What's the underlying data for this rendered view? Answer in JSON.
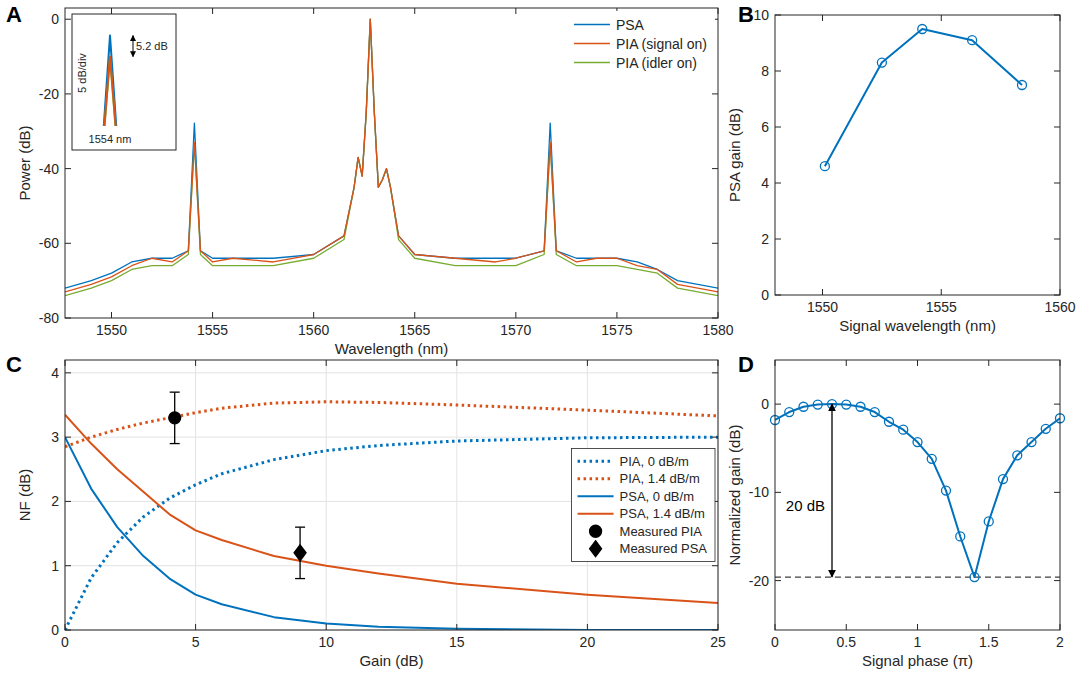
{
  "chart_data": [
    {
      "panel": "A",
      "type": "line",
      "x_label": "Wavelength (nm)",
      "y_label": "Power (dB)",
      "xlim": [
        1547.7,
        1580
      ],
      "xticks": [
        1550,
        1555,
        1560,
        1565,
        1570,
        1575,
        1580
      ],
      "ylim": [
        -80,
        3
      ],
      "yticks": [
        -80,
        -60,
        -40,
        -20,
        0
      ],
      "grid": false,
      "legend": "upper right",
      "x": [
        1547.7,
        1549,
        1550,
        1551,
        1552,
        1553,
        1553.8,
        1554.1,
        1554.4,
        1555,
        1556,
        1558,
        1560,
        1561.5,
        1562.0,
        1562.2,
        1562.4,
        1562.6,
        1562.8,
        1563.0,
        1563.2,
        1563.4,
        1563.6,
        1563.8,
        1564.2,
        1565,
        1567,
        1569,
        1570,
        1571.4,
        1571.7,
        1572.0,
        1573,
        1574,
        1575,
        1576,
        1577,
        1578,
        1580
      ],
      "series": [
        {
          "name": "PSA",
          "color": "#0072bd",
          "line_style": "solid",
          "values": [
            -72,
            -70,
            -68,
            -65,
            -64,
            -64,
            -62,
            -27.8,
            -62,
            -64,
            -64,
            -64,
            -63,
            -58,
            -45,
            -37,
            -42,
            -25,
            0,
            -25,
            -45,
            -43,
            -40,
            -45,
            -58,
            -63,
            -64,
            -64,
            -64,
            -62,
            -27.8,
            -62,
            -64,
            -64,
            -64,
            -65,
            -67,
            -70,
            -72
          ]
        },
        {
          "name": "PIA (signal on)",
          "color": "#d95319",
          "line_style": "solid",
          "values": [
            -73,
            -71,
            -69,
            -66,
            -64,
            -65,
            -62,
            -33,
            -62,
            -65,
            -64,
            -65,
            -63,
            -58,
            -45,
            -37,
            -42,
            -25,
            0,
            -25,
            -45,
            -43,
            -40,
            -45,
            -58,
            -63,
            -64,
            -65,
            -64,
            -62,
            -33,
            -62,
            -65,
            -64,
            -64,
            -66,
            -67,
            -71,
            -73
          ]
        },
        {
          "name": "PIA (idler on)",
          "color": "#77ac30",
          "line_style": "solid",
          "values": [
            -74,
            -72,
            -70,
            -67,
            -66,
            -66,
            -63,
            -33,
            -63,
            -66,
            -66,
            -66,
            -64,
            -59,
            -45,
            -37,
            -42,
            -25,
            0,
            -25,
            -45,
            -43,
            -40,
            -45,
            -59,
            -64,
            -66,
            -66,
            -66,
            -63,
            -33,
            -63,
            -66,
            -66,
            -66,
            -67,
            -68,
            -72,
            -74
          ]
        }
      ],
      "inset": {
        "xlim": [
          1553.6,
          1554.6
        ],
        "ylim": [
          -50,
          -24
        ],
        "y_label": "5 dB/div",
        "x_label": "1554 nm",
        "annotation": "5.2 dB"
      }
    },
    {
      "panel": "B",
      "type": "line",
      "marker": "circle",
      "color": "#0072bd",
      "x_label": "Signal wavelength (nm)",
      "y_label": "PSA gain (dB)",
      "xlim": [
        1548,
        1560
      ],
      "xticks": [
        1550,
        1555,
        1560
      ],
      "ylim": [
        0,
        10
      ],
      "yticks": [
        0,
        2,
        4,
        6,
        8,
        10
      ],
      "grid": false,
      "x": [
        1550.1,
        1552.5,
        1554.2,
        1556.3,
        1558.4
      ],
      "series": [
        {
          "color": "#0072bd",
          "line_style": "solid",
          "values": [
            4.6,
            8.3,
            9.5,
            9.1,
            7.5
          ]
        }
      ]
    },
    {
      "panel": "C",
      "type": "line",
      "x_label": "Gain (dB)",
      "y_label": "NF (dB)",
      "xlim": [
        0,
        25
      ],
      "xticks": [
        0,
        5,
        10,
        15,
        20,
        25
      ],
      "ylim": [
        0,
        4.2
      ],
      "yticks": [
        0,
        1,
        2,
        3,
        4
      ],
      "grid": true,
      "legend": "right",
      "series": [
        {
          "name": "PIA, 0 dB/m",
          "color": "#0072bd",
          "line_style": "dotted",
          "x": [
            0,
            1,
            2,
            3,
            4,
            5,
            6,
            8,
            10,
            12,
            15,
            20,
            25
          ],
          "values": [
            0,
            0.81,
            1.36,
            1.76,
            2.05,
            2.26,
            2.43,
            2.65,
            2.79,
            2.87,
            2.94,
            2.99,
            3.0
          ]
        },
        {
          "name": "PIA, 1.4 dB/m",
          "color": "#d95319",
          "line_style": "dotted",
          "x": [
            0,
            1,
            2,
            3,
            4,
            5,
            6,
            8,
            10,
            12,
            15,
            20,
            25
          ],
          "values": [
            2.85,
            3.0,
            3.12,
            3.22,
            3.3,
            3.38,
            3.45,
            3.53,
            3.55,
            3.54,
            3.5,
            3.42,
            3.33
          ]
        },
        {
          "name": "PSA, 0 dB/m",
          "color": "#0072bd",
          "line_style": "solid",
          "x": [
            0,
            1,
            2,
            3,
            4,
            5,
            6,
            8,
            10,
            12,
            15,
            20,
            25
          ],
          "values": [
            3.0,
            2.2,
            1.6,
            1.15,
            0.8,
            0.55,
            0.4,
            0.2,
            0.1,
            0.05,
            0.02,
            0,
            0
          ]
        },
        {
          "name": "PSA, 1.4 dB/m",
          "color": "#d95319",
          "line_style": "solid",
          "x": [
            0,
            1,
            2,
            3,
            4,
            5,
            6,
            8,
            10,
            12,
            15,
            20,
            25
          ],
          "values": [
            3.35,
            2.9,
            2.5,
            2.15,
            1.8,
            1.55,
            1.4,
            1.15,
            1.0,
            0.88,
            0.72,
            0.55,
            0.42
          ]
        },
        {
          "name": "Measured PIA",
          "type": "scatter",
          "marker": "circle",
          "color": "#000000",
          "x": [
            4.2
          ],
          "values": [
            3.3
          ],
          "error": [
            0.4
          ]
        },
        {
          "name": "Measured PSA",
          "type": "scatter",
          "marker": "diamond",
          "color": "#000000",
          "x": [
            9
          ],
          "values": [
            1.2
          ],
          "error": [
            0.4
          ]
        }
      ]
    },
    {
      "panel": "D",
      "type": "line",
      "marker": "circle",
      "color": "#0072bd",
      "x_label": "Signal phase (π)",
      "y_label": "Normalized gain (dB)",
      "xlim": [
        0,
        2
      ],
      "xticks": [
        0,
        0.5,
        1,
        1.5,
        2
      ],
      "ylim": [
        -25.6,
        5
      ],
      "yticks": [
        -20,
        -10,
        0
      ],
      "grid": false,
      "annotation": "20 dB",
      "x": [
        0,
        0.1,
        0.2,
        0.3,
        0.4,
        0.5,
        0.6,
        0.7,
        0.8,
        0.9,
        1,
        1.1,
        1.2,
        1.3,
        1.4,
        1.5,
        1.6,
        1.7,
        1.8,
        1.9,
        2
      ],
      "series": [
        {
          "color": "#0072bd",
          "line_style": "solid",
          "values": [
            -1.8,
            -0.9,
            -0.3,
            -0.05,
            0,
            -0.05,
            -0.3,
            -0.9,
            -2.0,
            -2.9,
            -4.3,
            -6.2,
            -9.8,
            -15,
            -19.6,
            -13.3,
            -8.5,
            -5.8,
            -4.3,
            -2.8,
            -1.6
          ]
        }
      ]
    }
  ]
}
